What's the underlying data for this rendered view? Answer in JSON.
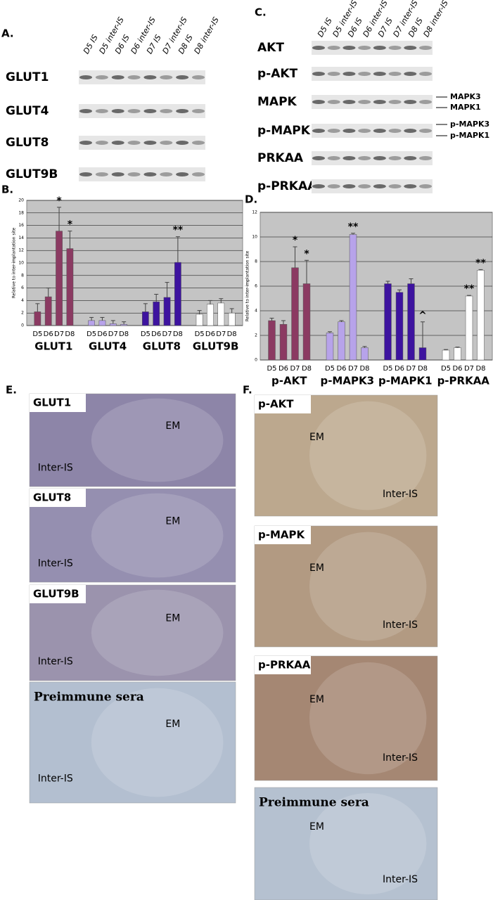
{
  "blots_a": {
    "label": "A.",
    "lanes": [
      "D5 IS",
      "D5 inter-IS",
      "D6 IS",
      "D6 inter-IS",
      "D7 IS",
      "D7 inter-IS",
      "D8 IS",
      "D8 inter-IS"
    ],
    "rows": [
      "GLUT1",
      "GLUT4",
      "GLUT8",
      "GLUT9B"
    ]
  },
  "blots_c": {
    "label": "C.",
    "lanes": [
      "D5 IS",
      "D5 inter-IS",
      "D6 IS",
      "D6 inter-IS",
      "D7 IS",
      "D7 inter-IS",
      "D8 IS",
      "D8 inter-IS"
    ],
    "rows": [
      "AKT",
      "p-AKT",
      "MAPK",
      "p-MAPK",
      "PRKAA",
      "p-PRKAA"
    ],
    "side_labels": [
      "MAPK3",
      "MAPK1",
      "p-MAPK3",
      "p-MAPK1"
    ]
  },
  "chart_data": [
    {
      "type": "bar",
      "label": "B.",
      "y_label": "Relative to inter-implantation site",
      "ylim": [
        0,
        20
      ],
      "yticks": [
        0,
        2,
        4,
        6,
        8,
        10,
        12,
        14,
        16,
        18,
        20
      ],
      "grid": true,
      "plot_background": "#c4c4c4",
      "groups": [
        {
          "name": "GLUT1",
          "color": "#8b3a62",
          "categories": [
            "D5",
            "D6",
            "D7",
            "D8"
          ],
          "values": [
            2.2,
            4.6,
            15.1,
            12.3
          ],
          "errors": [
            1.3,
            1.4,
            3.8,
            2.8
          ],
          "annotations": [
            null,
            null,
            "*",
            "*"
          ]
        },
        {
          "name": "GLUT4",
          "color": "#b7a3ea",
          "categories": [
            "D5",
            "D6",
            "D7",
            "D8"
          ],
          "values": [
            0.8,
            0.8,
            0.3,
            0.2
          ],
          "errors": [
            0.5,
            0.5,
            0.5,
            0.4
          ],
          "annotations": [
            null,
            null,
            null,
            null
          ]
        },
        {
          "name": "GLUT8",
          "color": "#3d139f",
          "categories": [
            "D5",
            "D6",
            "D7",
            "D8"
          ],
          "values": [
            2.2,
            3.8,
            4.5,
            10.1
          ],
          "errors": [
            1.3,
            1.2,
            2.4,
            4.1
          ],
          "annotations": [
            null,
            null,
            null,
            "**"
          ]
        },
        {
          "name": "GLUT9B",
          "color": "#ffffff",
          "categories": [
            "D5",
            "D6",
            "D7",
            "D8"
          ],
          "values": [
            1.8,
            3.4,
            3.6,
            2.0
          ],
          "errors": [
            0.6,
            0.6,
            0.7,
            0.7
          ],
          "annotations": [
            null,
            null,
            null,
            null
          ]
        }
      ]
    },
    {
      "type": "bar",
      "label": "D.",
      "y_label": "Relative to inter-implantation site",
      "ylim": [
        0,
        12
      ],
      "yticks": [
        0,
        2,
        4,
        6,
        8,
        10,
        12
      ],
      "grid": true,
      "plot_background": "#c4c4c4",
      "groups": [
        {
          "name": "p-AKT",
          "color": "#8b3a62",
          "categories": [
            "D5",
            "D6",
            "D7",
            "D8"
          ],
          "values": [
            3.2,
            2.9,
            7.5,
            6.2
          ],
          "errors": [
            0.2,
            0.3,
            1.7,
            1.9
          ],
          "annotations": [
            null,
            null,
            "*",
            "*"
          ]
        },
        {
          "name": "p-MAPK3",
          "color": "#b7a3ea",
          "categories": [
            "D5",
            "D6",
            "D7",
            "D8"
          ],
          "values": [
            2.2,
            3.1,
            10.2,
            1.0
          ],
          "errors": [
            0.1,
            0.1,
            0.1,
            0.1
          ],
          "annotations": [
            null,
            null,
            "**",
            null
          ]
        },
        {
          "name": "p-MAPK1",
          "color": "#3d139f",
          "categories": [
            "D5",
            "D6",
            "D7",
            "D8"
          ],
          "values": [
            6.2,
            5.5,
            6.2,
            1.0
          ],
          "errors": [
            0.2,
            0.2,
            0.4,
            2.1
          ],
          "annotations": [
            null,
            null,
            null,
            "^"
          ]
        },
        {
          "name": "p-PRKAA",
          "color": "#ffffff",
          "categories": [
            "D5",
            "D6",
            "D7",
            "D8"
          ],
          "values": [
            0.8,
            1.0,
            5.2,
            7.3
          ],
          "errors": [
            0.05,
            0.05,
            0.05,
            0.05
          ],
          "annotations": [
            null,
            null,
            "**",
            "**"
          ]
        }
      ]
    }
  ],
  "micrographs_e": {
    "label": "E.",
    "panels": [
      {
        "title": "GLUT1",
        "em": "EM",
        "inter": "Inter-IS"
      },
      {
        "title": "GLUT8",
        "em": "EM",
        "inter": "Inter-IS"
      },
      {
        "title": "GLUT9B",
        "em": "EM",
        "inter": "Inter-IS"
      },
      {
        "title": "Preimmune sera",
        "em": "EM",
        "inter": "Inter-IS"
      }
    ]
  },
  "micrographs_f": {
    "label": "F.",
    "panels": [
      {
        "title": "p-AKT",
        "em": "EM",
        "inter": "Inter-IS"
      },
      {
        "title": "p-MAPK",
        "em": "EM",
        "inter": "Inter-IS"
      },
      {
        "title": "p-PRKAA",
        "em": "EM",
        "inter": "Inter-IS"
      },
      {
        "title": "Preimmune sera",
        "em": "EM",
        "inter": "Inter-IS"
      }
    ]
  }
}
